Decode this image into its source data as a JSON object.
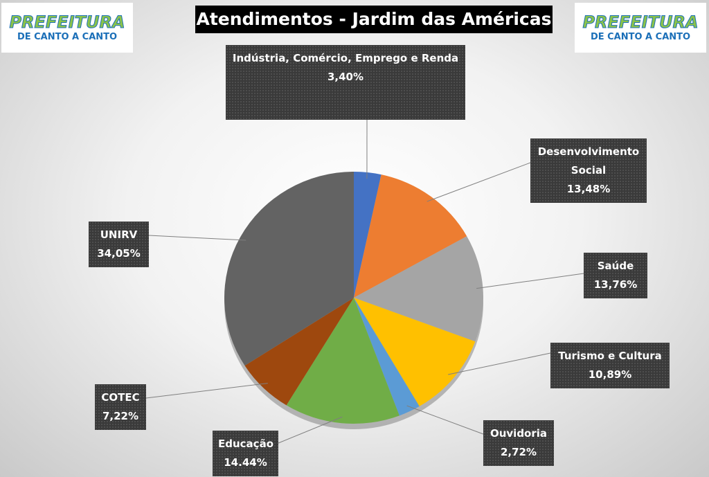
{
  "logo": {
    "title": "PREFEITURA",
    "subtitle": "DE CANTO A CANTO"
  },
  "chart_data": {
    "type": "pie",
    "title": "Atendimentos - Jardim das Américas",
    "categories": [
      "Indústria, Comércio, Emprego e Renda",
      "Desenvolvimento Social",
      "Saúde",
      "Turismo e Cultura",
      "Ouvidoria",
      "Educação",
      "COTEC",
      "UNIRV"
    ],
    "values": [
      3.4,
      13.48,
      13.76,
      10.89,
      2.72,
      14.44,
      7.22,
      34.05
    ],
    "value_labels": [
      "3,40%",
      "13,48%",
      "13,76%",
      "10,89%",
      "2,72%",
      "14.44%",
      "7,22%",
      "34,05%"
    ],
    "colors": [
      "#4472c4",
      "#ed7d31",
      "#a5a5a5",
      "#ffc000",
      "#5b9bd5",
      "#70ad47",
      "#9e480e",
      "#636363"
    ]
  }
}
